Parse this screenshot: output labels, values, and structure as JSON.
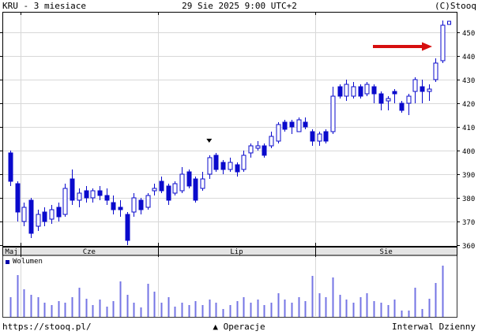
{
  "header": {
    "title": "KRU - 3 miesiace",
    "datetime": "29 Sie 2025 9:00 UTC+2",
    "copyright": "(C)Stooq"
  },
  "volume_legend": "Wolumen",
  "footer": {
    "url": "https://stooq.pl/",
    "operations_icon": "▲",
    "operations_label": "Operacje",
    "interval_label": "Interwal Dzienny"
  },
  "colors": {
    "candle": "#0a0acc",
    "candle_fill_up": "#ffffff",
    "volume_bar": "#7474e4",
    "legend_square": "#0000aa",
    "arrow": "#d60f0f",
    "grid": "#d8d8d8",
    "month_strip_bg": "#e4e4e4",
    "border": "#000000",
    "marker": "#000000"
  },
  "chart_data": {
    "type": "candlestick",
    "title": "KRU - 3 miesiace",
    "subtitle": "29 Sie 2025 9:00 UTC+2",
    "interval": "Dzienny",
    "legend": [
      "Wolumen"
    ],
    "grid": "on",
    "y_axis": {
      "side": "right",
      "min": 360,
      "max": 455,
      "tick_step": 10,
      "ticks": [
        360,
        370,
        380,
        390,
        400,
        410,
        420,
        430,
        440,
        450
      ]
    },
    "x_months": [
      {
        "label": "Maj",
        "days": 2
      },
      {
        "label": "Cze",
        "days": 20
      },
      {
        "label": "Lip",
        "days": 23
      },
      {
        "label": "Sie",
        "days": 19
      }
    ],
    "ohlc_note": "per day [open, high, low, close]; hollow candle = close>open, filled = close<open",
    "ohlc": [
      [
        399,
        400,
        385,
        387
      ],
      [
        386,
        387,
        370,
        374
      ],
      [
        370,
        378,
        368,
        376
      ],
      [
        379,
        380,
        363,
        365
      ],
      [
        368,
        375,
        366,
        373
      ],
      [
        374,
        376,
        368,
        370
      ],
      [
        371,
        377,
        369,
        375
      ],
      [
        376,
        378,
        370,
        372
      ],
      [
        373,
        386,
        372,
        384
      ],
      [
        388,
        392,
        377,
        379
      ],
      [
        379,
        384,
        376,
        382
      ],
      [
        383,
        385,
        378,
        380
      ],
      [
        380,
        384,
        378,
        383
      ],
      [
        383,
        385,
        379,
        381
      ],
      [
        381,
        384,
        377,
        379
      ],
      [
        378,
        381,
        373,
        375
      ],
      [
        376,
        379,
        372,
        375
      ],
      [
        373,
        374,
        360,
        362
      ],
      [
        374,
        382,
        372,
        380
      ],
      [
        379,
        380,
        373,
        375
      ],
      [
        376,
        382,
        375,
        381
      ],
      [
        383,
        386,
        381,
        384
      ],
      [
        387,
        389,
        382,
        383
      ],
      [
        385,
        386,
        377,
        379
      ],
      [
        382,
        387,
        381,
        386
      ],
      [
        383,
        393,
        382,
        390
      ],
      [
        391,
        392,
        384,
        385
      ],
      [
        388,
        389,
        378,
        379
      ],
      [
        384,
        391,
        383,
        388
      ],
      [
        390,
        398,
        388,
        397
      ],
      [
        398,
        399,
        391,
        392
      ],
      [
        395,
        396,
        390,
        392
      ],
      [
        392,
        397,
        391,
        395
      ],
      [
        394,
        395,
        389,
        391
      ],
      [
        392,
        400,
        391,
        398
      ],
      [
        399,
        403,
        397,
        402
      ],
      [
        401,
        404,
        400,
        402
      ],
      [
        402,
        403,
        397,
        398
      ],
      [
        402,
        408,
        401,
        406
      ],
      [
        404,
        412,
        403,
        411
      ],
      [
        412,
        413,
        408,
        409
      ],
      [
        412,
        413,
        407,
        410
      ],
      [
        408,
        414,
        408,
        413
      ],
      [
        412,
        414,
        409,
        410
      ],
      [
        408,
        409,
        402,
        404
      ],
      [
        404,
        408,
        402,
        407
      ],
      [
        408,
        409,
        403,
        404
      ],
      [
        408,
        427,
        407,
        423
      ],
      [
        427,
        428,
        422,
        423
      ],
      [
        423,
        430,
        421,
        428
      ],
      [
        423,
        429,
        422,
        427
      ],
      [
        427,
        428,
        422,
        423
      ],
      [
        424,
        429,
        423,
        428
      ],
      [
        427,
        428,
        420,
        424
      ],
      [
        424,
        425,
        417,
        420
      ],
      [
        421,
        423,
        417,
        422
      ],
      [
        425,
        426,
        420,
        424
      ],
      [
        420,
        421,
        416,
        417
      ],
      [
        420,
        424,
        415,
        423
      ],
      [
        425,
        431,
        420,
        430
      ],
      [
        427,
        430,
        420,
        425
      ],
      [
        425,
        428,
        421,
        426
      ],
      [
        430,
        439,
        429,
        437
      ],
      [
        438,
        455,
        437,
        453
      ]
    ],
    "volume_relative": [
      25,
      53,
      35,
      28,
      25,
      18,
      15,
      20,
      18,
      25,
      37,
      23,
      15,
      22,
      13,
      20,
      45,
      28,
      18,
      12,
      42,
      32,
      18,
      25,
      13,
      18,
      15,
      20,
      15,
      22,
      18,
      10,
      15,
      20,
      25,
      18,
      22,
      15,
      18,
      30,
      22,
      18,
      25,
      20,
      52,
      30,
      25,
      50,
      28,
      22,
      18,
      25,
      30,
      20,
      18,
      15,
      22,
      8,
      8,
      37,
      10,
      23,
      43,
      65
    ],
    "annotations": {
      "down_triangle_marker": {
        "day": 30,
        "price": 404
      },
      "last_price_square_marker": {
        "day": 64,
        "price": 454
      },
      "red_arrow": {
        "points_to_day": 64,
        "price": 444,
        "direction": "right"
      }
    }
  }
}
